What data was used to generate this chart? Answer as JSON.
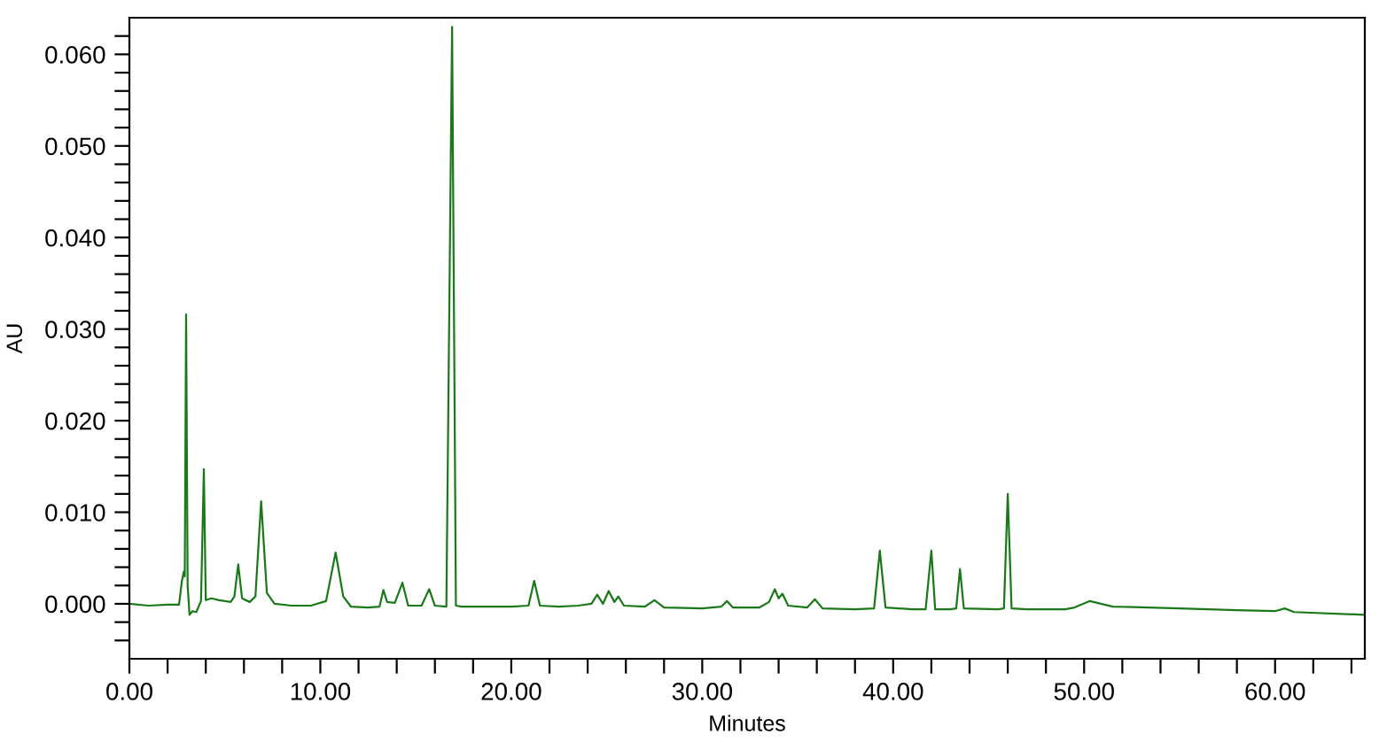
{
  "chart_data": {
    "type": "line",
    "xlabel": "Minutes",
    "ylabel": "AU",
    "xlim": [
      0,
      64.7
    ],
    "ylim": [
      -0.006,
      0.064
    ],
    "xticks": [
      {
        "value": 0,
        "label": "0.00"
      },
      {
        "value": 2,
        "label": null
      },
      {
        "value": 4,
        "label": null
      },
      {
        "value": 6,
        "label": null
      },
      {
        "value": 8,
        "label": null
      },
      {
        "value": 10,
        "label": "10.00"
      },
      {
        "value": 12,
        "label": null
      },
      {
        "value": 14,
        "label": null
      },
      {
        "value": 16,
        "label": null
      },
      {
        "value": 18,
        "label": null
      },
      {
        "value": 20,
        "label": "20.00"
      },
      {
        "value": 22,
        "label": null
      },
      {
        "value": 24,
        "label": null
      },
      {
        "value": 26,
        "label": null
      },
      {
        "value": 28,
        "label": null
      },
      {
        "value": 30,
        "label": "30.00"
      },
      {
        "value": 32,
        "label": null
      },
      {
        "value": 34,
        "label": null
      },
      {
        "value": 36,
        "label": null
      },
      {
        "value": 38,
        "label": null
      },
      {
        "value": 40,
        "label": "40.00"
      },
      {
        "value": 42,
        "label": null
      },
      {
        "value": 44,
        "label": null
      },
      {
        "value": 46,
        "label": null
      },
      {
        "value": 48,
        "label": null
      },
      {
        "value": 50,
        "label": "50.00"
      },
      {
        "value": 52,
        "label": null
      },
      {
        "value": 54,
        "label": null
      },
      {
        "value": 56,
        "label": null
      },
      {
        "value": 58,
        "label": null
      },
      {
        "value": 60,
        "label": "60.00"
      },
      {
        "value": 62,
        "label": null
      },
      {
        "value": 64,
        "label": null
      }
    ],
    "yticks": [
      {
        "value": -0.004,
        "label": null
      },
      {
        "value": -0.002,
        "label": null
      },
      {
        "value": 0,
        "label": "0.000"
      },
      {
        "value": 0.002,
        "label": null
      },
      {
        "value": 0.004,
        "label": null
      },
      {
        "value": 0.006,
        "label": null
      },
      {
        "value": 0.008,
        "label": null
      },
      {
        "value": 0.01,
        "label": "0.010"
      },
      {
        "value": 0.012,
        "label": null
      },
      {
        "value": 0.014,
        "label": null
      },
      {
        "value": 0.016,
        "label": null
      },
      {
        "value": 0.018,
        "label": null
      },
      {
        "value": 0.02,
        "label": "0.020"
      },
      {
        "value": 0.022,
        "label": null
      },
      {
        "value": 0.024,
        "label": null
      },
      {
        "value": 0.026,
        "label": null
      },
      {
        "value": 0.028,
        "label": null
      },
      {
        "value": 0.03,
        "label": "0.030"
      },
      {
        "value": 0.032,
        "label": null
      },
      {
        "value": 0.034,
        "label": null
      },
      {
        "value": 0.036,
        "label": null
      },
      {
        "value": 0.038,
        "label": null
      },
      {
        "value": 0.04,
        "label": "0.040"
      },
      {
        "value": 0.042,
        "label": null
      },
      {
        "value": 0.044,
        "label": null
      },
      {
        "value": 0.046,
        "label": null
      },
      {
        "value": 0.048,
        "label": null
      },
      {
        "value": 0.05,
        "label": "0.050"
      },
      {
        "value": 0.052,
        "label": null
      },
      {
        "value": 0.054,
        "label": null
      },
      {
        "value": 0.056,
        "label": null
      },
      {
        "value": 0.058,
        "label": null
      },
      {
        "value": 0.06,
        "label": "0.060"
      },
      {
        "value": 0.062,
        "label": null
      }
    ],
    "grid": false,
    "marker": "none",
    "line_style": "solid",
    "series": [
      {
        "color": "#1a7a1a",
        "x": [
          0,
          1,
          2,
          2.6,
          2.75,
          2.85,
          2.9,
          2.97,
          3.05,
          3.15,
          3.3,
          3.5,
          3.75,
          3.9,
          4.0,
          4.3,
          4.7,
          5.3,
          5.5,
          5.7,
          5.9,
          6.3,
          6.6,
          6.9,
          7.2,
          7.6,
          8.5,
          9.5,
          10.3,
          10.8,
          11.2,
          11.6,
          12.5,
          13.1,
          13.3,
          13.5,
          13.9,
          14.3,
          14.6,
          15.3,
          15.7,
          16.0,
          16.6,
          16.9,
          17.1,
          17.4,
          18.5,
          20,
          20.9,
          21.2,
          21.5,
          22.5,
          23.5,
          24.2,
          24.5,
          24.8,
          25.1,
          25.4,
          25.6,
          25.9,
          27,
          27.5,
          28,
          30,
          31,
          31.3,
          31.6,
          33,
          33.5,
          33.8,
          34.0,
          34.2,
          34.5,
          35.5,
          35.9,
          36.3,
          38,
          39.0,
          39.3,
          39.6,
          41,
          41.7,
          42.0,
          42.2,
          43,
          43.3,
          43.5,
          43.7,
          45.5,
          45.8,
          46.0,
          46.2,
          47,
          49,
          49.5,
          50.3,
          51.5,
          55,
          58,
          60,
          60.5,
          61,
          64.7
        ],
        "values": [
          0.0,
          -0.0002,
          -0.0001,
          -0.0001,
          0.0025,
          0.0035,
          0.003,
          0.0316,
          0.002,
          -0.0012,
          -0.0008,
          -0.0009,
          0.0003,
          0.0147,
          0.0004,
          0.0006,
          0.0004,
          0.0002,
          0.0008,
          0.0043,
          0.0006,
          0.0002,
          0.0008,
          0.0112,
          0.0012,
          0.0,
          -0.0002,
          -0.0002,
          0.0003,
          0.0056,
          0.0008,
          -0.0003,
          -0.0004,
          -0.0003,
          0.0015,
          0.0002,
          0.0001,
          0.0023,
          -0.0002,
          -0.0002,
          0.0016,
          -0.0002,
          -0.0003,
          0.063,
          -0.0002,
          -0.0003,
          -0.0003,
          -0.0003,
          -0.0002,
          0.0025,
          -0.0002,
          -0.0003,
          -0.0002,
          0.0,
          0.001,
          0.0,
          0.0014,
          0.0002,
          0.0008,
          -0.0002,
          -0.0003,
          0.0004,
          -0.0004,
          -0.0005,
          -0.0003,
          0.0003,
          -0.0004,
          -0.0004,
          0.0002,
          0.0016,
          0.0006,
          0.0011,
          -0.0002,
          -0.0004,
          0.0005,
          -0.0005,
          -0.0006,
          -0.0005,
          0.0058,
          -0.0004,
          -0.0006,
          -0.0006,
          0.0058,
          -0.0006,
          -0.0006,
          -0.0005,
          0.0038,
          -0.0005,
          -0.0006,
          -0.0005,
          0.012,
          -0.0005,
          -0.0006,
          -0.0006,
          -0.0004,
          0.0003,
          -0.0003,
          -0.0005,
          -0.0007,
          -0.0008,
          -0.0005,
          -0.0009,
          -0.0012
        ]
      }
    ]
  }
}
